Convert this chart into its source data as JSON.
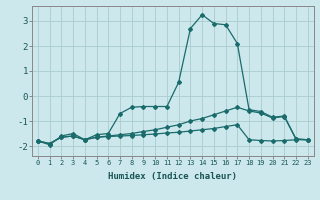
{
  "xlabel": "Humidex (Indice chaleur)",
  "background_color": "#cce8ec",
  "grid_color": "#aacccc",
  "line_color": "#1a6b6b",
  "xlim": [
    -0.5,
    23.5
  ],
  "ylim": [
    -2.4,
    3.6
  ],
  "yticks": [
    -2,
    -1,
    0,
    1,
    2,
    3
  ],
  "xticks": [
    0,
    1,
    2,
    3,
    4,
    5,
    6,
    7,
    8,
    9,
    10,
    11,
    12,
    13,
    14,
    15,
    16,
    17,
    18,
    19,
    20,
    21,
    22,
    23
  ],
  "x": [
    0,
    1,
    2,
    3,
    4,
    5,
    6,
    7,
    8,
    9,
    10,
    11,
    12,
    13,
    14,
    15,
    16,
    17,
    18,
    19,
    20,
    21,
    22,
    23
  ],
  "y_main": [
    -1.8,
    -1.95,
    -1.6,
    -1.5,
    -1.75,
    -1.55,
    -1.5,
    -0.7,
    -0.45,
    -0.42,
    -0.42,
    -0.42,
    0.55,
    2.7,
    3.25,
    2.9,
    2.85,
    2.1,
    -0.55,
    -0.62,
    -0.85,
    -0.8,
    -1.72,
    -1.75
  ],
  "y_mid": [
    -1.8,
    -1.9,
    -1.65,
    -1.6,
    -1.75,
    -1.65,
    -1.6,
    -1.55,
    -1.5,
    -1.42,
    -1.35,
    -1.25,
    -1.15,
    -1.0,
    -0.9,
    -0.75,
    -0.6,
    -0.45,
    -0.6,
    -0.68,
    -0.88,
    -0.82,
    -1.72,
    -1.75
  ],
  "y_flat": [
    -1.8,
    -1.9,
    -1.65,
    -1.6,
    -1.75,
    -1.65,
    -1.62,
    -1.6,
    -1.58,
    -1.55,
    -1.52,
    -1.48,
    -1.45,
    -1.4,
    -1.35,
    -1.3,
    -1.22,
    -1.15,
    -1.75,
    -1.78,
    -1.8,
    -1.78,
    -1.75,
    -1.75
  ]
}
